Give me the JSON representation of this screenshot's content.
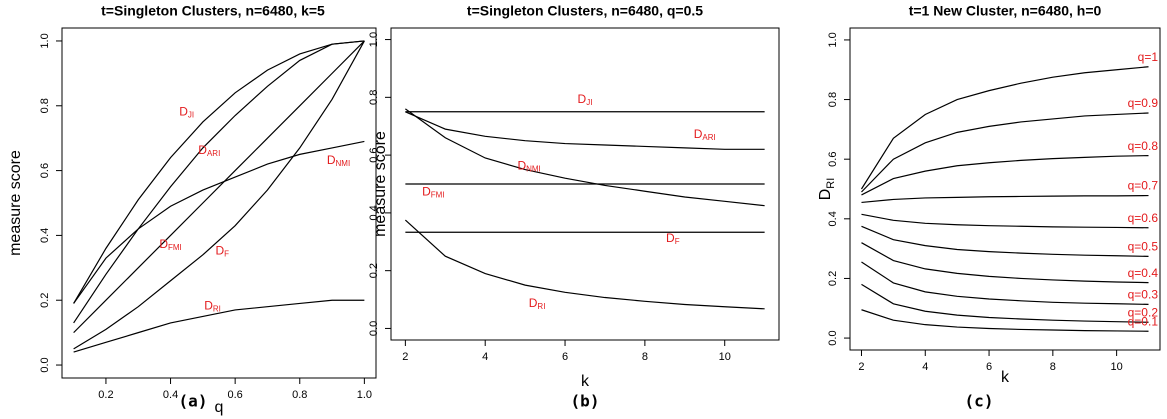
{
  "chart_data": [
    {
      "type": "line",
      "title": "t=Singleton Clusters, n=6480, k=5",
      "xlabel": "q",
      "ylabel": "measure score",
      "caption": "(a)",
      "line_color": "#000000",
      "label_color": "#e31a1c",
      "x": [
        0.1,
        0.2,
        0.3,
        0.4,
        0.5,
        0.6,
        0.7,
        0.8,
        0.9,
        1.0
      ],
      "xlim": [
        0.064,
        1.036
      ],
      "ylim": [
        -0.04,
        1.04
      ],
      "xticks": [
        0.2,
        0.4,
        0.6,
        0.8,
        {
          "value": 1,
          "label": "1.0"
        }
      ],
      "yticks": [
        {
          "value": 0,
          "label": "0.0"
        },
        0.2,
        0.4,
        0.6,
        0.8,
        {
          "value": 1,
          "label": "1.0"
        }
      ],
      "series": [
        {
          "name": "D",
          "subscript": "JI",
          "values": [
            0.19,
            0.36,
            0.51,
            0.64,
            0.75,
            0.84,
            0.91,
            0.96,
            0.99,
            1.0
          ]
        },
        {
          "name": "D",
          "subscript": "ARI",
          "values": [
            0.13,
            0.28,
            0.42,
            0.55,
            0.67,
            0.77,
            0.86,
            0.94,
            0.99,
            1.0
          ]
        },
        {
          "name": "D",
          "subscript": "NMI",
          "values": [
            0.19,
            0.33,
            0.42,
            0.49,
            0.54,
            0.58,
            0.62,
            0.65,
            0.67,
            0.69
          ]
        },
        {
          "name": "D",
          "subscript": "FMI",
          "values": [
            0.1,
            0.2,
            0.3,
            0.4,
            0.5,
            0.6,
            0.7,
            0.8,
            0.9,
            1.0
          ]
        },
        {
          "name": "D",
          "subscript": "F",
          "values": [
            0.05,
            0.11,
            0.18,
            0.26,
            0.34,
            0.43,
            0.54,
            0.67,
            0.82,
            1.0
          ]
        },
        {
          "name": "D",
          "subscript": "RI",
          "values": [
            0.04,
            0.07,
            0.1,
            0.13,
            0.15,
            0.17,
            0.18,
            0.19,
            0.2,
            0.2
          ]
        }
      ]
    },
    {
      "type": "line",
      "title": "t=Singleton Clusters, n=6480, q=0.5",
      "xlabel": "k",
      "ylabel": "measure score",
      "caption": "(b)",
      "line_color": "#000000",
      "label_color": "#e31a1c",
      "x": [
        2,
        3,
        4,
        5,
        6,
        7,
        8,
        9,
        10,
        11
      ],
      "xlim": [
        1.64,
        11.36
      ],
      "ylim": [
        -0.04,
        1.04
      ],
      "xticks": [
        2,
        4,
        6,
        8,
        10
      ],
      "yticks": [
        {
          "value": 0,
          "label": "0.0"
        },
        0.2,
        0.4,
        0.6,
        0.8,
        {
          "value": 1,
          "label": "1.0"
        }
      ],
      "series": [
        {
          "name": "D",
          "subscript": "JI",
          "values": [
            0.75,
            0.75,
            0.75,
            0.75,
            0.75,
            0.75,
            0.75,
            0.75,
            0.75,
            0.75
          ]
        },
        {
          "name": "D",
          "subscript": "ARI",
          "values": [
            0.75,
            0.69,
            0.665,
            0.65,
            0.64,
            0.635,
            0.63,
            0.625,
            0.62,
            0.62
          ]
        },
        {
          "name": "D",
          "subscript": "NMI",
          "values": [
            0.76,
            0.66,
            0.59,
            0.55,
            0.52,
            0.495,
            0.475,
            0.455,
            0.44,
            0.425
          ]
        },
        {
          "name": "D",
          "subscript": "FMI",
          "values": [
            0.5,
            0.5,
            0.5,
            0.5,
            0.5,
            0.5,
            0.5,
            0.5,
            0.5,
            0.5
          ]
        },
        {
          "name": "D",
          "subscript": "F",
          "values": [
            0.333,
            0.333,
            0.333,
            0.333,
            0.333,
            0.333,
            0.333,
            0.333,
            0.333,
            0.333
          ]
        },
        {
          "name": "D",
          "subscript": "RI",
          "values": [
            0.375,
            0.25,
            0.19,
            0.15,
            0.125,
            0.107,
            0.094,
            0.083,
            0.075,
            0.068
          ]
        }
      ]
    },
    {
      "type": "line",
      "title": "t=1 New Cluster, n=6480, h=0",
      "xlabel": "k",
      "ylabel": "D",
      "ylabel_subscript": "RI",
      "caption": "(c)",
      "line_color": "#000000",
      "label_color": "#e31a1c",
      "x": [
        2,
        3,
        4,
        5,
        6,
        7,
        8,
        9,
        10,
        11
      ],
      "xlim": [
        1.64,
        11.36
      ],
      "ylim": [
        -0.04,
        1.04
      ],
      "xticks": [
        2,
        4,
        6,
        8,
        10
      ],
      "yticks": [
        {
          "value": 0,
          "label": "0.0"
        },
        0.2,
        0.4,
        0.6,
        0.8,
        {
          "value": 1,
          "label": "1.0"
        }
      ],
      "series": [
        {
          "name": "q=1",
          "values": [
            0.5,
            0.67,
            0.75,
            0.8,
            0.83,
            0.855,
            0.875,
            0.89,
            0.9,
            0.91
          ]
        },
        {
          "name": "q=0.9",
          "values": [
            0.49,
            0.6,
            0.655,
            0.69,
            0.71,
            0.725,
            0.735,
            0.745,
            0.75,
            0.755
          ]
        },
        {
          "name": "q=0.8",
          "values": [
            0.48,
            0.535,
            0.56,
            0.578,
            0.588,
            0.596,
            0.602,
            0.606,
            0.61,
            0.612
          ]
        },
        {
          "name": "q=0.7",
          "values": [
            0.455,
            0.465,
            0.47,
            0.472,
            0.474,
            0.475,
            0.476,
            0.477,
            0.477,
            0.478
          ]
        },
        {
          "name": "q=0.6",
          "values": [
            0.415,
            0.395,
            0.385,
            0.38,
            0.377,
            0.375,
            0.373,
            0.372,
            0.371,
            0.37
          ]
        },
        {
          "name": "q=0.5",
          "values": [
            0.375,
            0.33,
            0.31,
            0.297,
            0.29,
            0.285,
            0.281,
            0.278,
            0.276,
            0.274
          ]
        },
        {
          "name": "q=0.4",
          "values": [
            0.32,
            0.26,
            0.232,
            0.217,
            0.207,
            0.2,
            0.195,
            0.191,
            0.188,
            0.186
          ]
        },
        {
          "name": "q=0.3",
          "values": [
            0.255,
            0.185,
            0.155,
            0.14,
            0.131,
            0.125,
            0.12,
            0.117,
            0.115,
            0.113
          ]
        },
        {
          "name": "q=0.2",
          "values": [
            0.18,
            0.115,
            0.09,
            0.077,
            0.069,
            0.064,
            0.06,
            0.057,
            0.055,
            0.053
          ]
        },
        {
          "name": "q=0.1",
          "values": [
            0.095,
            0.06,
            0.045,
            0.037,
            0.032,
            0.029,
            0.027,
            0.025,
            0.024,
            0.023
          ]
        }
      ]
    }
  ]
}
